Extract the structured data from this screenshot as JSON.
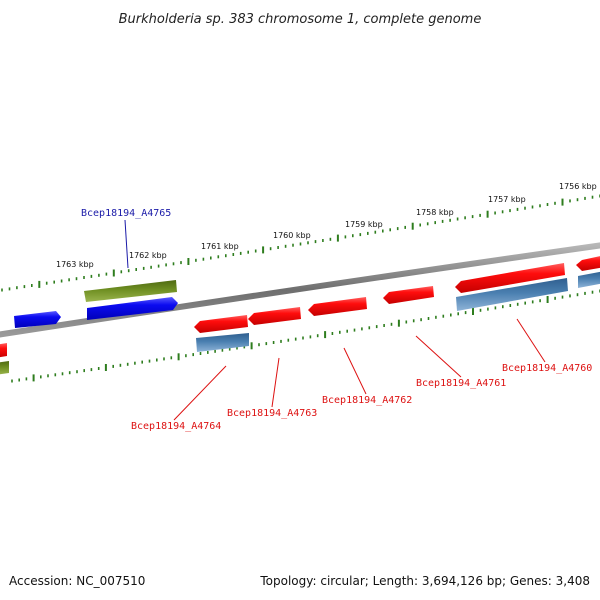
{
  "title": "Burkholderia sp. 383 chromosome 1, complete genome",
  "ticks": [
    "1763 kbp",
    "1762 kbp",
    "1761 kbp",
    "1760 kbp",
    "1759 kbp",
    "1758 kbp",
    "1757 kbp",
    "1756 kbp"
  ],
  "gene_labels": [
    {
      "text": "Bcep18194_A4765",
      "color": "#1a1aa8",
      "strand": "forward"
    },
    {
      "text": "Bcep18194_A4764",
      "color": "#dd1111",
      "strand": "reverse"
    },
    {
      "text": "Bcep18194_A4763",
      "color": "#dd1111",
      "strand": "reverse"
    },
    {
      "text": "Bcep18194_A4762",
      "color": "#dd1111",
      "strand": "reverse"
    },
    {
      "text": "Bcep18194_A4761",
      "color": "#dd1111",
      "strand": "reverse"
    },
    {
      "text": "Bcep18194_A4760",
      "color": "#dd1111",
      "strand": "reverse"
    }
  ],
  "colors": {
    "forward_cds": "#0a0aee",
    "reverse_cds": "#ee0a0a",
    "forward_gene": "#6b8a1e",
    "reverse_gene": "#4a7fb0",
    "backbone": "#7a7a7a",
    "tick_marks": "#2e7d1e"
  },
  "footer": {
    "accession": "Accession: NC_007510",
    "stats": "Topology: circular; Length: 3,694,126 bp; Genes: 3,408"
  }
}
